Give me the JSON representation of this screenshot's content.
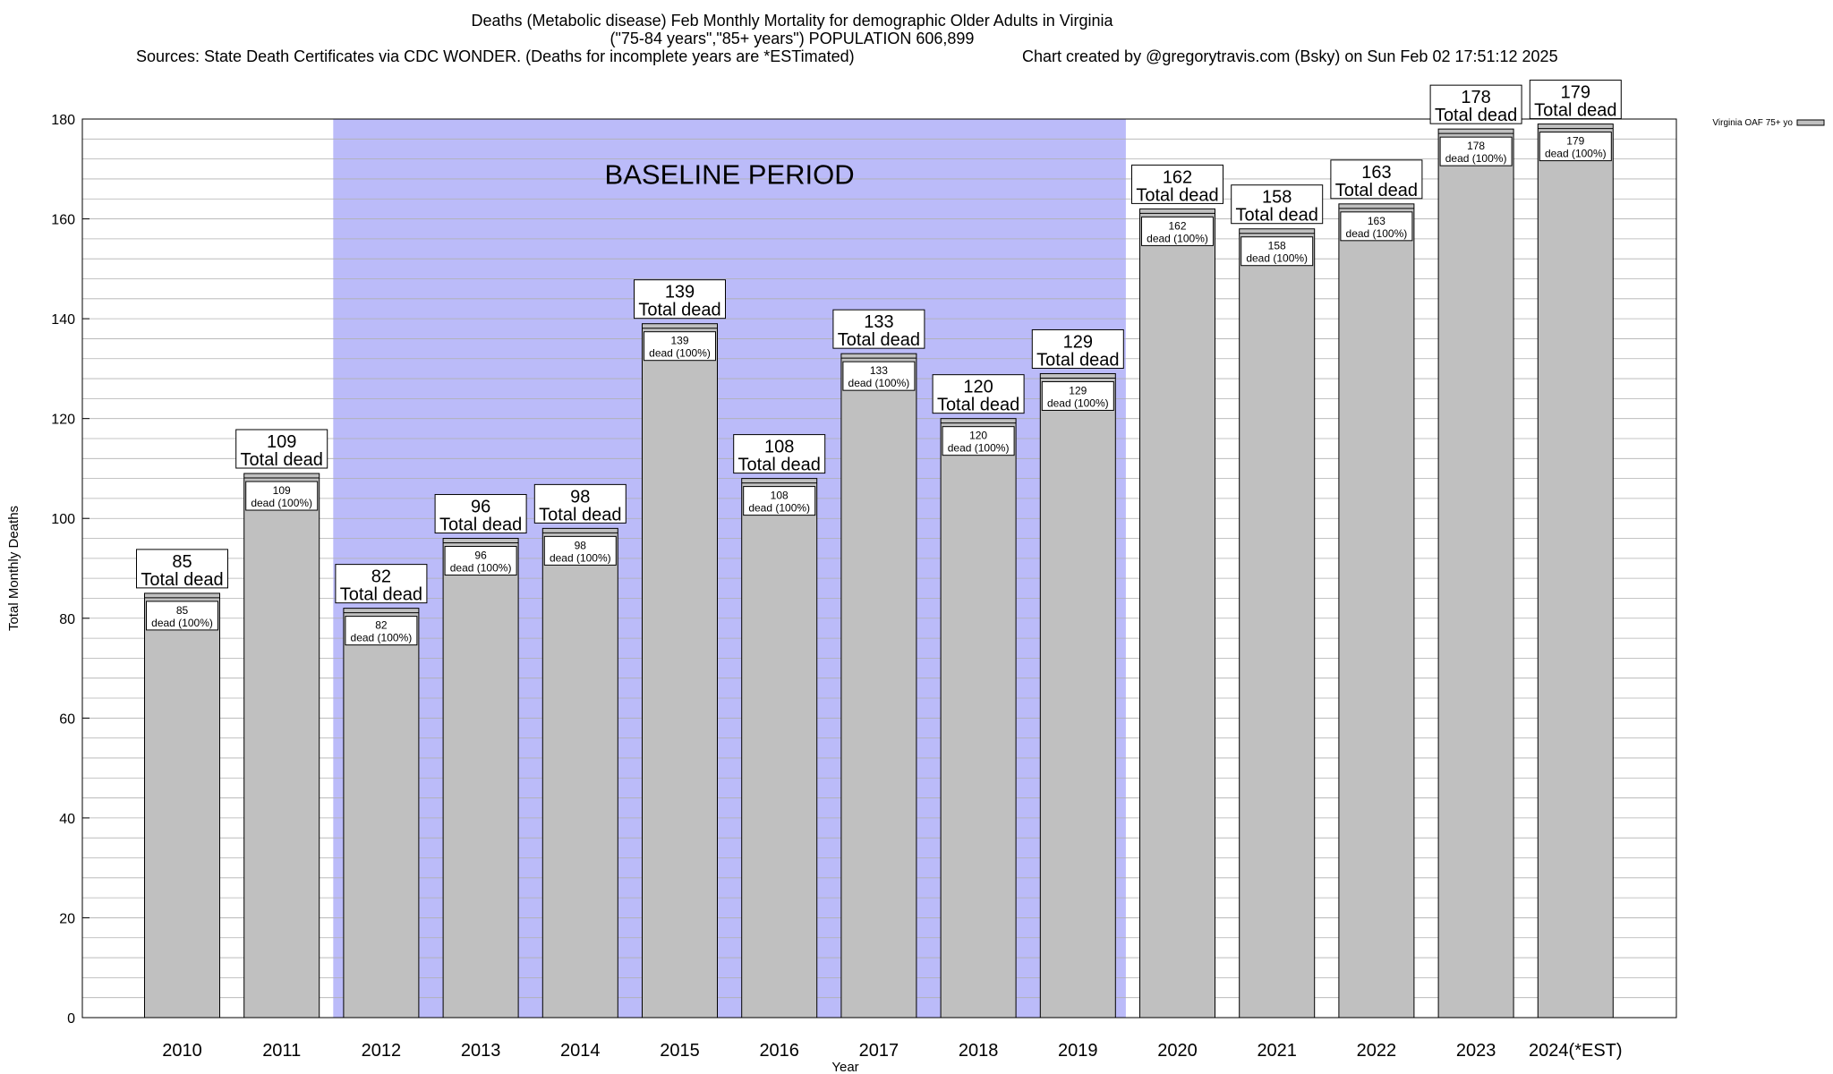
{
  "header": {
    "title_line1": "Deaths (Metabolic disease) Feb Monthly Mortality for demographic Older Adults in Virginia",
    "title_line2": "(\"75-84 years\",\"85+ years\") POPULATION 606,899",
    "sources": "Sources: State Death Certificates via CDC WONDER. (Deaths for incomplete years are *ESTimated)",
    "credit": "Chart created by @gregorytravis.com (Bsky) on Sun Feb 02 17:51:12 2025"
  },
  "chart_data": {
    "type": "bar",
    "xlabel": "Year",
    "ylabel": "Total Monthly Deaths",
    "ylim": [
      0,
      180
    ],
    "yticks": [
      0,
      20,
      40,
      60,
      80,
      100,
      120,
      140,
      160,
      180
    ],
    "grid": true,
    "legend": {
      "placement": "top-right",
      "label": "Virginia OAF 75+ yo"
    },
    "categories": [
      "2010",
      "2011",
      "2012",
      "2013",
      "2014",
      "2015",
      "2016",
      "2017",
      "2018",
      "2019",
      "2020",
      "2021",
      "2022",
      "2023",
      "2024(*EST)"
    ],
    "series": [
      {
        "name": "Virginia OAF 75+ yo",
        "values": [
          85,
          109,
          82,
          96,
          98,
          139,
          108,
          133,
          120,
          129,
          162,
          158,
          163,
          178,
          179
        ]
      }
    ],
    "total_label": "Total dead",
    "inner_label": "dead (100%)",
    "baseline": {
      "label": "BASELINE PERIOD",
      "start": "2012",
      "end": "2019"
    },
    "colors": {
      "bar": "#c0c0c0",
      "baseline": "#bbbbf9",
      "grid": "#b0b0b0"
    }
  }
}
